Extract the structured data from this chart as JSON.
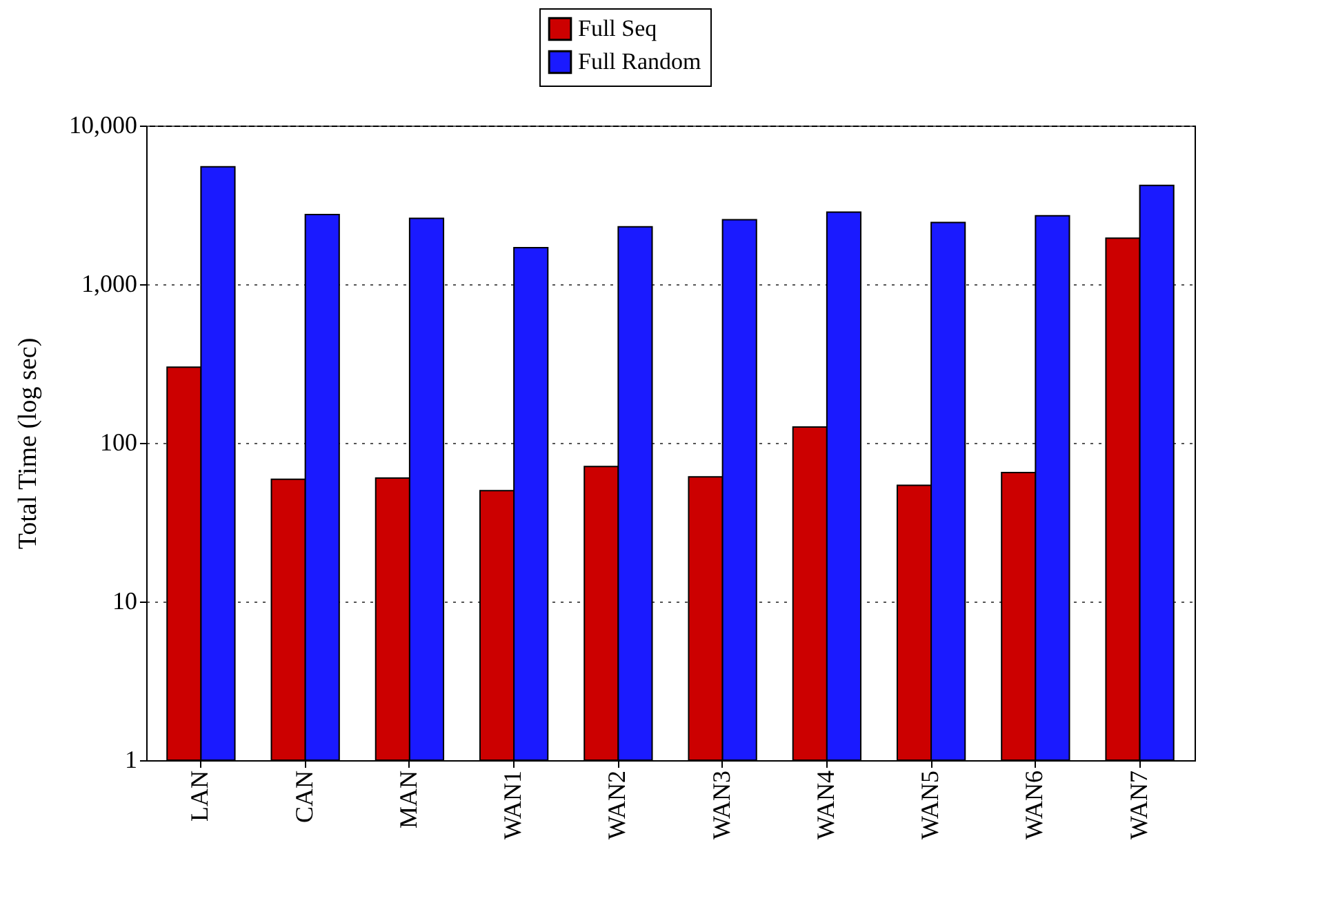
{
  "chart_data": {
    "type": "bar",
    "ylabel": "Total Time (log sec)",
    "categories": [
      "LAN",
      "CAN",
      "MAN",
      "WAN1",
      "WAN2",
      "WAN3",
      "WAN4",
      "WAN5",
      "WAN6",
      "WAN7"
    ],
    "series": [
      {
        "name": "Full Seq",
        "color": "#cc0000",
        "values": [
          300,
          59,
          60,
          50,
          71,
          61,
          126,
          54,
          65,
          1950
        ]
      },
      {
        "name": "Full Random",
        "color": "#1a1aff",
        "values": [
          5500,
          2750,
          2600,
          1700,
          2300,
          2550,
          2850,
          2450,
          2700,
          4200
        ]
      }
    ],
    "log": true,
    "ylim": [
      1,
      10000
    ],
    "yticks": [
      1,
      10,
      100,
      {
        "value": 1000,
        "label": "1,000"
      },
      {
        "value": 10000,
        "label": "10,000"
      }
    ],
    "grid": "y",
    "legend": "top"
  }
}
